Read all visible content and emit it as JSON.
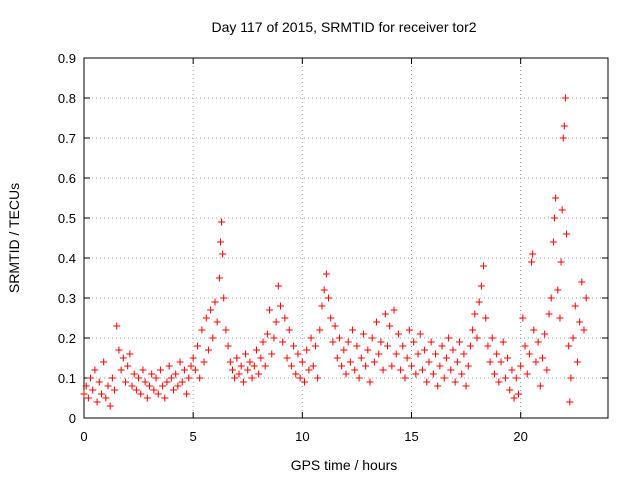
{
  "chart_data": {
    "type": "scatter",
    "title": "Day 117 of 2015, SRMTID for receiver tor2",
    "xlabel": "GPS time / hours",
    "ylabel": "SRMTID / TECUs",
    "xlim": [
      0,
      24
    ],
    "ylim": [
      0,
      0.9
    ],
    "xticks": [
      0,
      5,
      10,
      15,
      20
    ],
    "yticks": [
      0,
      0.1,
      0.2,
      0.3,
      0.4,
      0.5,
      0.6,
      0.7,
      0.8,
      0.9
    ],
    "xtick_labels": [
      "0",
      "5",
      "10",
      "15",
      "20"
    ],
    "ytick_labels": [
      "0",
      "0.1",
      "0.2",
      "0.3",
      "0.4",
      "0.5",
      "0.6",
      "0.7",
      "0.8",
      "0.9"
    ],
    "grid": true,
    "marker": "+",
    "color": "#ff0000",
    "series": [
      {
        "name": "SRMTID",
        "points": [
          [
            0.0,
            0.06
          ],
          [
            0.1,
            0.08
          ],
          [
            0.2,
            0.05
          ],
          [
            0.3,
            0.1
          ],
          [
            0.4,
            0.07
          ],
          [
            0.5,
            0.12
          ],
          [
            0.6,
            0.04
          ],
          [
            0.7,
            0.09
          ],
          [
            0.8,
            0.06
          ],
          [
            0.9,
            0.14
          ],
          [
            1.0,
            0.05
          ],
          [
            1.1,
            0.08
          ],
          [
            1.2,
            0.03
          ],
          [
            1.3,
            0.1
          ],
          [
            1.4,
            0.07
          ],
          [
            1.5,
            0.23
          ],
          [
            1.6,
            0.17
          ],
          [
            1.7,
            0.12
          ],
          [
            1.8,
            0.15
          ],
          [
            1.9,
            0.09
          ],
          [
            2.0,
            0.13
          ],
          [
            2.1,
            0.16
          ],
          [
            2.2,
            0.08
          ],
          [
            2.3,
            0.11
          ],
          [
            2.4,
            0.07
          ],
          [
            2.5,
            0.1
          ],
          [
            2.6,
            0.06
          ],
          [
            2.7,
            0.12
          ],
          [
            2.8,
            0.09
          ],
          [
            2.9,
            0.05
          ],
          [
            3.0,
            0.08
          ],
          [
            3.1,
            0.11
          ],
          [
            3.2,
            0.07
          ],
          [
            3.3,
            0.1
          ],
          [
            3.4,
            0.06
          ],
          [
            3.5,
            0.12
          ],
          [
            3.6,
            0.08
          ],
          [
            3.7,
            0.05
          ],
          [
            3.8,
            0.09
          ],
          [
            3.9,
            0.13
          ],
          [
            4.0,
            0.1
          ],
          [
            4.1,
            0.07
          ],
          [
            4.2,
            0.11
          ],
          [
            4.3,
            0.08
          ],
          [
            4.4,
            0.14
          ],
          [
            4.5,
            0.09
          ],
          [
            4.6,
            0.12
          ],
          [
            4.7,
            0.06
          ],
          [
            4.8,
            0.1
          ],
          [
            4.9,
            0.13
          ],
          [
            5.0,
            0.15
          ],
          [
            5.1,
            0.12
          ],
          [
            5.2,
            0.18
          ],
          [
            5.3,
            0.1
          ],
          [
            5.4,
            0.22
          ],
          [
            5.5,
            0.14
          ],
          [
            5.6,
            0.25
          ],
          [
            5.7,
            0.17
          ],
          [
            5.8,
            0.27
          ],
          [
            5.9,
            0.2
          ],
          [
            6.0,
            0.29
          ],
          [
            6.1,
            0.24
          ],
          [
            6.2,
            0.35
          ],
          [
            6.25,
            0.44
          ],
          [
            6.3,
            0.49
          ],
          [
            6.35,
            0.41
          ],
          [
            6.4,
            0.3
          ],
          [
            6.5,
            0.22
          ],
          [
            6.6,
            0.18
          ],
          [
            6.7,
            0.14
          ],
          [
            6.8,
            0.12
          ],
          [
            6.9,
            0.1
          ],
          [
            7.0,
            0.15
          ],
          [
            7.1,
            0.11
          ],
          [
            7.2,
            0.13
          ],
          [
            7.3,
            0.09
          ],
          [
            7.4,
            0.16
          ],
          [
            7.5,
            0.12
          ],
          [
            7.6,
            0.14
          ],
          [
            7.7,
            0.1
          ],
          [
            7.8,
            0.13
          ],
          [
            7.9,
            0.17
          ],
          [
            8.0,
            0.11
          ],
          [
            8.1,
            0.15
          ],
          [
            8.2,
            0.19
          ],
          [
            8.3,
            0.13
          ],
          [
            8.4,
            0.21
          ],
          [
            8.5,
            0.27
          ],
          [
            8.6,
            0.16
          ],
          [
            8.7,
            0.2
          ],
          [
            8.8,
            0.24
          ],
          [
            8.9,
            0.33
          ],
          [
            9.0,
            0.28
          ],
          [
            9.1,
            0.19
          ],
          [
            9.2,
            0.25
          ],
          [
            9.3,
            0.15
          ],
          [
            9.4,
            0.22
          ],
          [
            9.5,
            0.13
          ],
          [
            9.6,
            0.18
          ],
          [
            9.7,
            0.11
          ],
          [
            9.8,
            0.16
          ],
          [
            9.9,
            0.1
          ],
          [
            10.0,
            0.14
          ],
          [
            10.1,
            0.09
          ],
          [
            10.2,
            0.17
          ],
          [
            10.3,
            0.12
          ],
          [
            10.4,
            0.2
          ],
          [
            10.5,
            0.13
          ],
          [
            10.6,
            0.18
          ],
          [
            10.7,
            0.1
          ],
          [
            10.8,
            0.22
          ],
          [
            10.9,
            0.28
          ],
          [
            11.0,
            0.32
          ],
          [
            11.1,
            0.36
          ],
          [
            11.2,
            0.3
          ],
          [
            11.3,
            0.25
          ],
          [
            11.4,
            0.19
          ],
          [
            11.5,
            0.23
          ],
          [
            11.6,
            0.15
          ],
          [
            11.7,
            0.2
          ],
          [
            11.8,
            0.13
          ],
          [
            11.9,
            0.17
          ],
          [
            12.0,
            0.11
          ],
          [
            12.1,
            0.19
          ],
          [
            12.2,
            0.14
          ],
          [
            12.3,
            0.22
          ],
          [
            12.4,
            0.12
          ],
          [
            12.5,
            0.18
          ],
          [
            12.6,
            0.1
          ],
          [
            12.7,
            0.15
          ],
          [
            12.8,
            0.21
          ],
          [
            12.9,
            0.13
          ],
          [
            13.0,
            0.17
          ],
          [
            13.1,
            0.09
          ],
          [
            13.2,
            0.2
          ],
          [
            13.3,
            0.14
          ],
          [
            13.4,
            0.24
          ],
          [
            13.5,
            0.16
          ],
          [
            13.6,
            0.19
          ],
          [
            13.7,
            0.12
          ],
          [
            13.8,
            0.26
          ],
          [
            13.9,
            0.18
          ],
          [
            14.0,
            0.23
          ],
          [
            14.1,
            0.13
          ],
          [
            14.2,
            0.27
          ],
          [
            14.3,
            0.16
          ],
          [
            14.4,
            0.21
          ],
          [
            14.5,
            0.12
          ],
          [
            14.6,
            0.18
          ],
          [
            14.7,
            0.1
          ],
          [
            14.8,
            0.15
          ],
          [
            14.9,
            0.22
          ],
          [
            15.0,
            0.13
          ],
          [
            15.1,
            0.19
          ],
          [
            15.2,
            0.11
          ],
          [
            15.3,
            0.16
          ],
          [
            15.4,
            0.21
          ],
          [
            15.5,
            0.12
          ],
          [
            15.6,
            0.17
          ],
          [
            15.7,
            0.09
          ],
          [
            15.8,
            0.14
          ],
          [
            15.9,
            0.19
          ],
          [
            16.0,
            0.11
          ],
          [
            16.1,
            0.16
          ],
          [
            16.2,
            0.08
          ],
          [
            16.3,
            0.13
          ],
          [
            16.4,
            0.18
          ],
          [
            16.5,
            0.1
          ],
          [
            16.6,
            0.15
          ],
          [
            16.7,
            0.2
          ],
          [
            16.8,
            0.12
          ],
          [
            16.9,
            0.17
          ],
          [
            17.0,
            0.09
          ],
          [
            17.1,
            0.14
          ],
          [
            17.2,
            0.19
          ],
          [
            17.3,
            0.11
          ],
          [
            17.4,
            0.16
          ],
          [
            17.5,
            0.08
          ],
          [
            17.6,
            0.13
          ],
          [
            17.7,
            0.18
          ],
          [
            17.8,
            0.22
          ],
          [
            17.9,
            0.26
          ],
          [
            18.0,
            0.2
          ],
          [
            18.1,
            0.29
          ],
          [
            18.2,
            0.33
          ],
          [
            18.3,
            0.38
          ],
          [
            18.4,
            0.25
          ],
          [
            18.5,
            0.18
          ],
          [
            18.6,
            0.14
          ],
          [
            18.7,
            0.2
          ],
          [
            18.8,
            0.11
          ],
          [
            18.9,
            0.16
          ],
          [
            19.0,
            0.09
          ],
          [
            19.1,
            0.14
          ],
          [
            19.2,
            0.19
          ],
          [
            19.3,
            0.1
          ],
          [
            19.4,
            0.15
          ],
          [
            19.5,
            0.07
          ],
          [
            19.6,
            0.12
          ],
          [
            19.7,
            0.05
          ],
          [
            19.8,
            0.1
          ],
          [
            19.9,
            0.06
          ],
          [
            20.0,
            0.13
          ],
          [
            20.1,
            0.25
          ],
          [
            20.2,
            0.18
          ],
          [
            20.3,
            0.11
          ],
          [
            20.4,
            0.16
          ],
          [
            20.5,
            0.39
          ],
          [
            20.55,
            0.41
          ],
          [
            20.6,
            0.22
          ],
          [
            20.7,
            0.14
          ],
          [
            20.8,
            0.19
          ],
          [
            20.9,
            0.08
          ],
          [
            21.0,
            0.15
          ],
          [
            21.1,
            0.21
          ],
          [
            21.2,
            0.12
          ],
          [
            21.3,
            0.26
          ],
          [
            21.4,
            0.3
          ],
          [
            21.5,
            0.44
          ],
          [
            21.55,
            0.5
          ],
          [
            21.6,
            0.55
          ],
          [
            21.7,
            0.32
          ],
          [
            21.8,
            0.25
          ],
          [
            21.85,
            0.39
          ],
          [
            21.9,
            0.52
          ],
          [
            21.95,
            0.7
          ],
          [
            22.0,
            0.73
          ],
          [
            22.05,
            0.8
          ],
          [
            22.1,
            0.46
          ],
          [
            22.2,
            0.18
          ],
          [
            22.25,
            0.04
          ],
          [
            22.3,
            0.1
          ],
          [
            22.4,
            0.2
          ],
          [
            22.5,
            0.28
          ],
          [
            22.6,
            0.14
          ],
          [
            22.7,
            0.24
          ],
          [
            22.8,
            0.34
          ],
          [
            22.9,
            0.22
          ],
          [
            23.0,
            0.3
          ]
        ]
      }
    ]
  }
}
